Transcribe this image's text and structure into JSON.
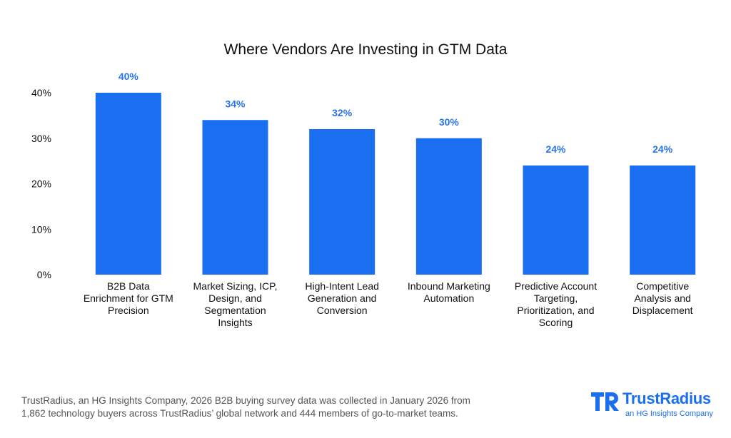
{
  "colors": {
    "bar": "#1a6ef0",
    "value_label": "#2a73e8",
    "brand": "#1a6ef0",
    "text": "#111111",
    "footnote": "#555555"
  },
  "chart_data": {
    "type": "bar",
    "title": "Where Vendors Are Investing in GTM Data",
    "xlabel": "",
    "ylabel": "",
    "ylim": [
      0,
      40
    ],
    "yticks": [
      0,
      10,
      20,
      30,
      40
    ],
    "ytick_labels": [
      "0%",
      "10%",
      "20%",
      "30%",
      "40%"
    ],
    "grid": false,
    "categories": [
      [
        "B2B Data",
        "Enrichment for GTM",
        "Precision"
      ],
      [
        "Market Sizing, ICP,",
        "Design, and",
        "Segmentation",
        "Insights"
      ],
      [
        "High-Intent Lead",
        "Generation and",
        "Conversion"
      ],
      [
        "Inbound Marketing",
        "Automation"
      ],
      [
        "Predictive Account",
        "Targeting,",
        "Prioritization, and",
        "Scoring"
      ],
      [
        "Competitive",
        "Analysis and",
        "Displacement"
      ]
    ],
    "values": [
      40,
      34,
      32,
      30,
      24,
      24
    ],
    "value_labels": [
      "40%",
      "34%",
      "32%",
      "30%",
      "24%",
      "24%"
    ]
  },
  "footnote": {
    "line1": "TrustRadius, an HG Insights Company, 2026 B2B buying survey data was collected in January 2026 from",
    "line2": "1,862 technology buyers across TrustRadius’ global network and 444 members of go-to-market teams."
  },
  "brand": {
    "name": "TrustRadius",
    "tagline": "an HG Insights Company",
    "icon": "trustradius-logo-icon"
  }
}
